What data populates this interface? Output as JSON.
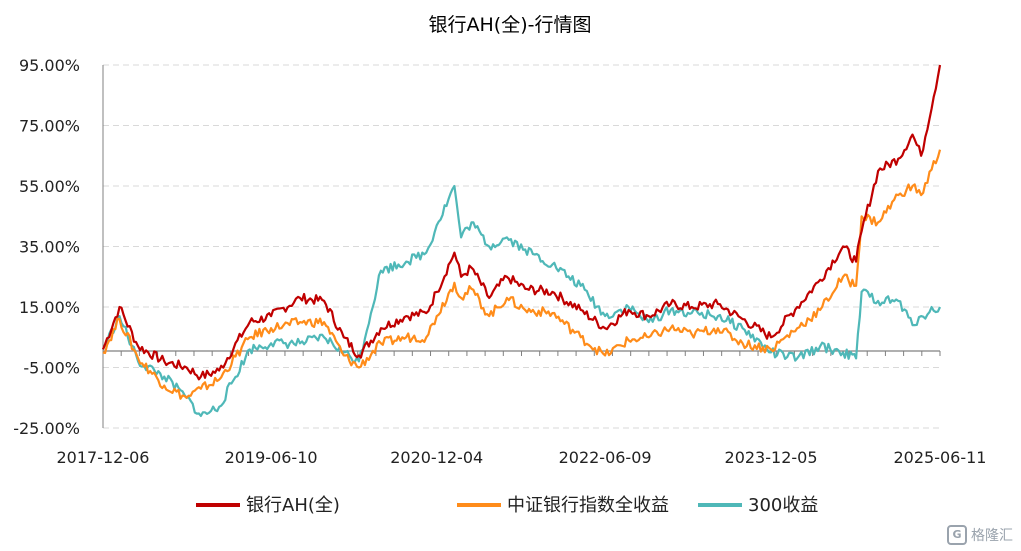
{
  "chart_data": {
    "type": "line",
    "title": "银行AH(全)-行情图",
    "xlabel": "",
    "ylabel": "",
    "ylim": [
      -25,
      95
    ],
    "yticks": [
      "95.00%",
      "75.00%",
      "55.00%",
      "35.00%",
      "15.00%",
      "-5.00%",
      "-25.00%"
    ],
    "ytick_values": [
      95,
      75,
      55,
      35,
      15,
      -5,
      -25
    ],
    "xticks": [
      "2017-12-06",
      "2019-06-10",
      "2020-12-04",
      "2022-06-09",
      "2023-12-05",
      "2025-06-11"
    ],
    "x": [
      "2017-12-06",
      "2018-01-29",
      "2018-03-31",
      "2018-06-25",
      "2018-09-06",
      "2018-10-23",
      "2018-12-22",
      "2019-04-01",
      "2019-06-10",
      "2019-09-13",
      "2019-12-01",
      "2020-02-03",
      "2020-03-24",
      "2020-06-04",
      "2020-08-26",
      "2020-10-31",
      "2020-12-04",
      "2021-01-31",
      "2021-02-22",
      "2021-03-28",
      "2021-05-25",
      "2021-07-22",
      "2021-09-20",
      "2021-12-18",
      "2022-03-21",
      "2022-06-09",
      "2022-08-25",
      "2022-10-30",
      "2023-01-10",
      "2023-03-20",
      "2023-06-14",
      "2023-09-03",
      "2023-12-05",
      "2024-02-29",
      "2024-05-14",
      "2024-07-28",
      "2024-09-09",
      "2024-09-27",
      "2024-11-20",
      "2025-01-25",
      "2025-03-13",
      "2025-04-10",
      "2025-06-11"
    ],
    "series": [
      {
        "name": "银行AH(全)",
        "color": "#c00000",
        "values": [
          1,
          15,
          2,
          -3,
          -5,
          -8,
          -6,
          10,
          12,
          18,
          17,
          5,
          -1,
          8,
          12,
          13,
          20,
          33,
          25,
          28,
          18,
          25,
          21,
          20,
          14,
          8,
          14,
          12,
          16,
          15,
          16,
          11,
          5,
          15,
          24,
          35,
          30,
          40,
          60,
          64,
          72,
          65,
          95
        ]
      },
      {
        "name": "中证银行指数全收益",
        "color": "#ff8c1a",
        "values": [
          0,
          11,
          -2,
          -11,
          -15,
          -12,
          -9,
          5,
          8,
          10,
          10,
          -1,
          -5,
          3,
          5,
          5,
          12,
          23,
          18,
          21,
          12,
          18,
          14,
          13,
          5,
          -1,
          4,
          5,
          8,
          6,
          8,
          3,
          1,
          8,
          14,
          25,
          22,
          45,
          43,
          52,
          55,
          52,
          67
        ]
      },
      {
        "name": "300收益",
        "color": "#4fb8b8",
        "values": [
          1,
          12,
          -3,
          -8,
          -15,
          -21,
          -18,
          1,
          3,
          3,
          5,
          0,
          -3,
          27,
          30,
          33,
          42,
          55,
          38,
          43,
          35,
          38,
          34,
          29,
          22,
          12,
          15,
          10,
          14,
          13,
          12,
          8,
          0,
          -2,
          2,
          0,
          -2,
          20,
          17,
          17,
          9,
          12,
          15
        ]
      }
    ],
    "legend": "bottom",
    "grid": true
  },
  "watermark": {
    "text": "格隆汇"
  }
}
